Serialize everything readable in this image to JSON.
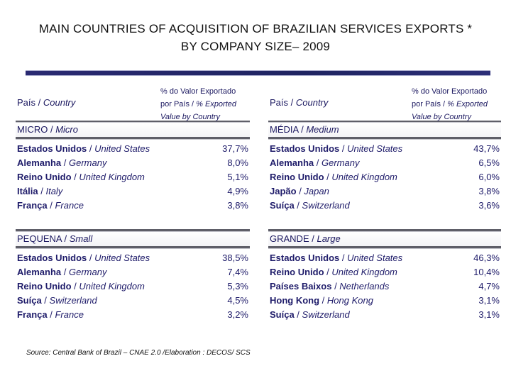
{
  "title": {
    "line1": "MAIN COUNTRIES OF ACQUISITION OF BRAZILIAN SERVICES EXPORTS *",
    "line2": "BY COMPANY SIZE– 2009"
  },
  "headers": {
    "country_pt": "País",
    "country_en": "Country",
    "value_pt_1": "% do Valor Exportado",
    "value_pt_2": "por País",
    "value_en_2": "% Exported",
    "value_en_3": "Value by Country"
  },
  "sections": {
    "micro": {
      "label_pt": "MICRO",
      "label_en": "Micro",
      "rows": [
        {
          "pt": "Estados Unidos",
          "en": "United States",
          "value": "37,7%"
        },
        {
          "pt": "Alemanha",
          "en": "Germany",
          "value": "8,0%"
        },
        {
          "pt": "Reino Unido",
          "en": "United Kingdom",
          "value": "5,1%"
        },
        {
          "pt": "Itália",
          "en": "Italy",
          "value": "4,9%"
        },
        {
          "pt": "França",
          "en": "France",
          "value": "3,8%"
        }
      ]
    },
    "media": {
      "label_pt": "MÉDIA",
      "label_en": "Medium",
      "rows": [
        {
          "pt": "Estados Unidos",
          "en": "United States",
          "value": "43,7%"
        },
        {
          "pt": "Alemanha",
          "en": "Germany",
          "value": "6,5%"
        },
        {
          "pt": "Reino Unido",
          "en": "United Kingdom",
          "value": "6,0%"
        },
        {
          "pt": "Japão",
          "en": "Japan",
          "value": "3,8%"
        },
        {
          "pt": "Suíça",
          "en": "Switzerland",
          "value": "3,6%"
        }
      ]
    },
    "pequena": {
      "label_pt": "PEQUENA",
      "label_en": "Small",
      "rows": [
        {
          "pt": "Estados Unidos",
          "en": "United States",
          "value": "38,5%"
        },
        {
          "pt": "Alemanha",
          "en": "Germany",
          "value": "7,4%"
        },
        {
          "pt": "Reino Unido",
          "en": "United Kingdom",
          "value": "5,3%"
        },
        {
          "pt": "Suíça",
          "en": "Switzerland",
          "value": "4,5%"
        },
        {
          "pt": "França",
          "en": "France",
          "value": "3,2%"
        }
      ]
    },
    "grande": {
      "label_pt": "GRANDE",
      "label_en": "Large",
      "rows": [
        {
          "pt": "Estados Unidos",
          "en": "United States",
          "value": "46,3%"
        },
        {
          "pt": "Reino Unido",
          "en": "United Kingdom",
          "value": "10,4%"
        },
        {
          "pt": "Países Baixos",
          "en": "Netherlands",
          "value": "4,7%"
        },
        {
          "pt": "Hong Kong",
          "en": "Hong Kong",
          "value": "3,1%"
        },
        {
          "pt": "Suíça",
          "en": "Switzerland",
          "value": "3,1%"
        }
      ]
    }
  },
  "source": "Source: Central Bank of Brazil – CNAE 2.0 /Elaboration : DECOS/ SCS"
}
